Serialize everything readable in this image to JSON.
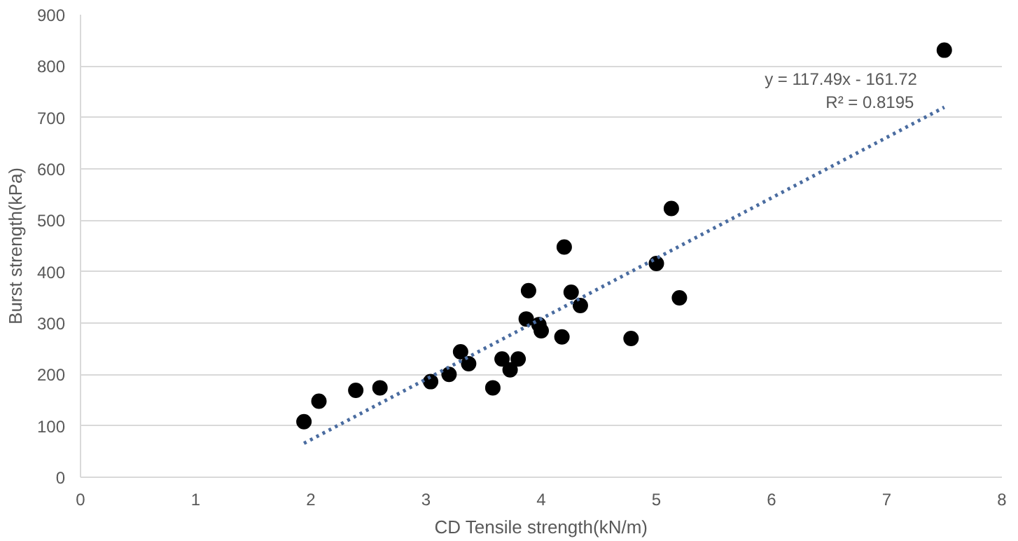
{
  "chart_data": {
    "type": "scatter",
    "xlabel": "CD Tensile strength(kN/m)",
    "ylabel": "Burst strength(kPa)",
    "xlim": [
      0,
      8
    ],
    "xticks": [
      0,
      1,
      2,
      3,
      4,
      5,
      6,
      7,
      8
    ],
    "ylim": [
      0,
      900
    ],
    "yticks": [
      0,
      100,
      200,
      300,
      400,
      500,
      600,
      700,
      800,
      900
    ],
    "grid": "y",
    "marker": "circle",
    "series": [
      {
        "color": "#000000",
        "x": [
          1.94,
          2.07,
          2.39,
          2.6,
          3.04,
          3.2,
          3.3,
          3.37,
          3.58,
          3.66,
          3.73,
          3.8,
          3.87,
          3.89,
          3.98,
          4.0,
          4.18,
          4.2,
          4.26,
          4.34,
          4.78,
          5.0,
          5.13,
          5.2,
          7.5
        ],
        "values": [
          108,
          148,
          169,
          174,
          186,
          200,
          244,
          221,
          174,
          230,
          209,
          230,
          308,
          363,
          297,
          285,
          273,
          448,
          360,
          334,
          270,
          416,
          523,
          349,
          831
        ]
      },
      {
        "type": "line",
        "color": "#4a6ca0",
        "line_style": "dotted",
        "marker": "none",
        "x": [
          1.94,
          7.5
        ],
        "values": [
          66,
          720
        ]
      }
    ],
    "annotations": [
      "y = 117.49x - 161.72",
      "R² = 0.8195"
    ]
  }
}
